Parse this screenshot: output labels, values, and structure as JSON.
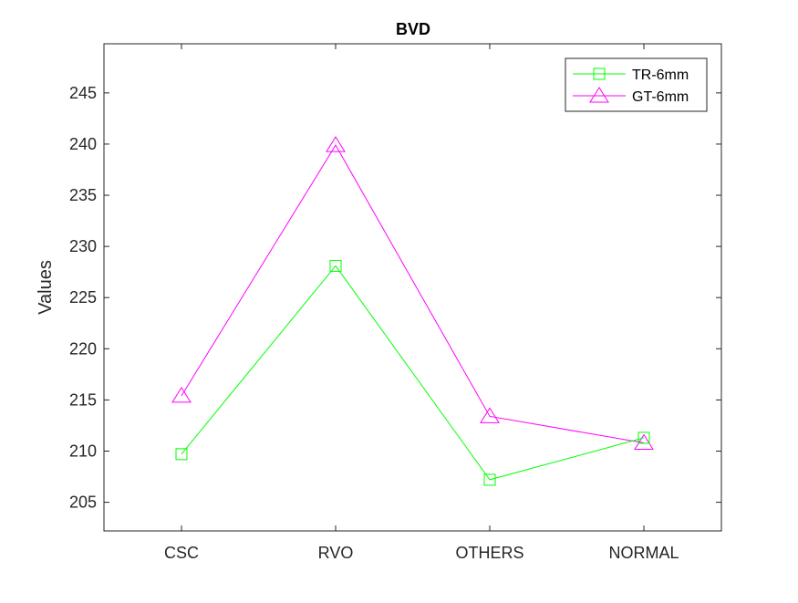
{
  "chart_data": {
    "type": "line",
    "title": "BVD",
    "xlabel": "",
    "ylabel": "Values",
    "categories": [
      "CSC",
      "RVO",
      "OTHERS",
      "NORMAL"
    ],
    "ylim": [
      202.2,
      249.8
    ],
    "yticks": [
      205,
      210,
      215,
      220,
      225,
      230,
      235,
      240,
      245
    ],
    "grid": false,
    "legend_position": "top-right",
    "series": [
      {
        "name": "TR-6mm",
        "color": "#00ff00",
        "marker": "square",
        "values": [
          209.7,
          228.1,
          207.2,
          211.3
        ]
      },
      {
        "name": "GT-6mm",
        "color": "#ff00ff",
        "marker": "triangle",
        "values": [
          215.4,
          239.9,
          213.4,
          210.8
        ]
      }
    ]
  }
}
